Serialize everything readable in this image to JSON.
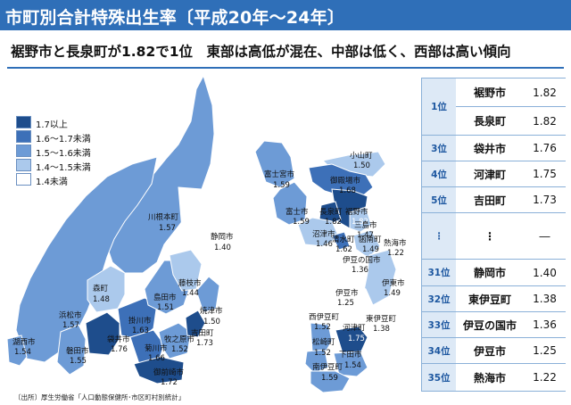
{
  "title": "市町別合計特殊出生率〔平成20年～24年〕",
  "subtitle": "裾野市と長泉町が1.82で1位　東部は高低が混在、中部は低く、西部は高い傾向",
  "legend": [
    {
      "label": "1.7以上",
      "color": "#1e4d8c"
    },
    {
      "label": "1.6～1.7未満",
      "color": "#3d70b8"
    },
    {
      "label": "1.5～1.6未満",
      "color": "#6d9bd6"
    },
    {
      "label": "1.4～1.5未満",
      "color": "#abc9ec"
    },
    {
      "label": "1.4未満",
      "color": "#ffffff"
    }
  ],
  "map_labels": [
    {
      "name": "川根本町",
      "value": "1.57"
    },
    {
      "name": "静岡市",
      "value": "1.40"
    },
    {
      "name": "富士宮市",
      "value": "1.59"
    },
    {
      "name": "小山町",
      "value": "1.50"
    },
    {
      "name": "御殿場市",
      "value": "1.68"
    },
    {
      "name": "富士市",
      "value": "1.59"
    },
    {
      "name": "長泉町",
      "value": "1.82"
    },
    {
      "name": "裾野市",
      "value": "1.82"
    },
    {
      "name": "三島市",
      "value": "1.47"
    },
    {
      "name": "沼津市",
      "value": "1.46"
    },
    {
      "name": "清水町",
      "value": "1.62"
    },
    {
      "name": "函南町",
      "value": "1.49"
    },
    {
      "name": "熱海市",
      "value": "1.22"
    },
    {
      "name": "伊豆の国市",
      "value": "1.36"
    },
    {
      "name": "伊東市",
      "value": "1.49"
    },
    {
      "name": "伊豆市",
      "value": "1.25"
    },
    {
      "name": "森町",
      "value": "1.48"
    },
    {
      "name": "藤枝市",
      "value": "1.44"
    },
    {
      "name": "島田市",
      "value": "1.51"
    },
    {
      "name": "焼津市",
      "value": "1.50"
    },
    {
      "name": "浜松市",
      "value": "1.57"
    },
    {
      "name": "掛川市",
      "value": "1.63"
    },
    {
      "name": "吉田町",
      "value": "1.73"
    },
    {
      "name": "袋井市",
      "value": "1.76"
    },
    {
      "name": "菊川市",
      "value": "1.66"
    },
    {
      "name": "牧之原市",
      "value": "1.52"
    },
    {
      "name": "磐田市",
      "value": "1.55"
    },
    {
      "name": "湖西市",
      "value": "1.54"
    },
    {
      "name": "御前崎市",
      "value": "1.72"
    },
    {
      "name": "西伊豆町",
      "value": "1.52"
    },
    {
      "name": "東伊豆町",
      "value": "1.38"
    },
    {
      "name": "河津町",
      "value": "1.75"
    },
    {
      "name": "松崎町",
      "value": "1.52"
    },
    {
      "name": "下田市",
      "value": "1.54"
    },
    {
      "name": "南伊豆町",
      "value": "1.59"
    }
  ],
  "ranking": {
    "rows": [
      {
        "rank": "1位",
        "name": "裾野市",
        "value": "1.82"
      },
      {
        "rank": "",
        "name": "長泉町",
        "value": "1.82"
      },
      {
        "rank": "3位",
        "name": "袋井市",
        "value": "1.76"
      },
      {
        "rank": "4位",
        "name": "河津町",
        "value": "1.75"
      },
      {
        "rank": "5位",
        "name": "吉田町",
        "value": "1.73"
      },
      {
        "rank": "⋮",
        "name": "⋮",
        "value": "―"
      },
      {
        "rank": "31位",
        "name": "静岡市",
        "value": "1.40"
      },
      {
        "rank": "32位",
        "name": "東伊豆町",
        "value": "1.38"
      },
      {
        "rank": "33位",
        "name": "伊豆の国市",
        "value": "1.36"
      },
      {
        "rank": "34位",
        "name": "伊豆市",
        "value": "1.25"
      },
      {
        "rank": "35位",
        "name": "熱海市",
        "value": "1.22"
      }
    ]
  },
  "source": "〔出所〕厚生労働省「人口動態保健所･市区町村別統計」"
}
